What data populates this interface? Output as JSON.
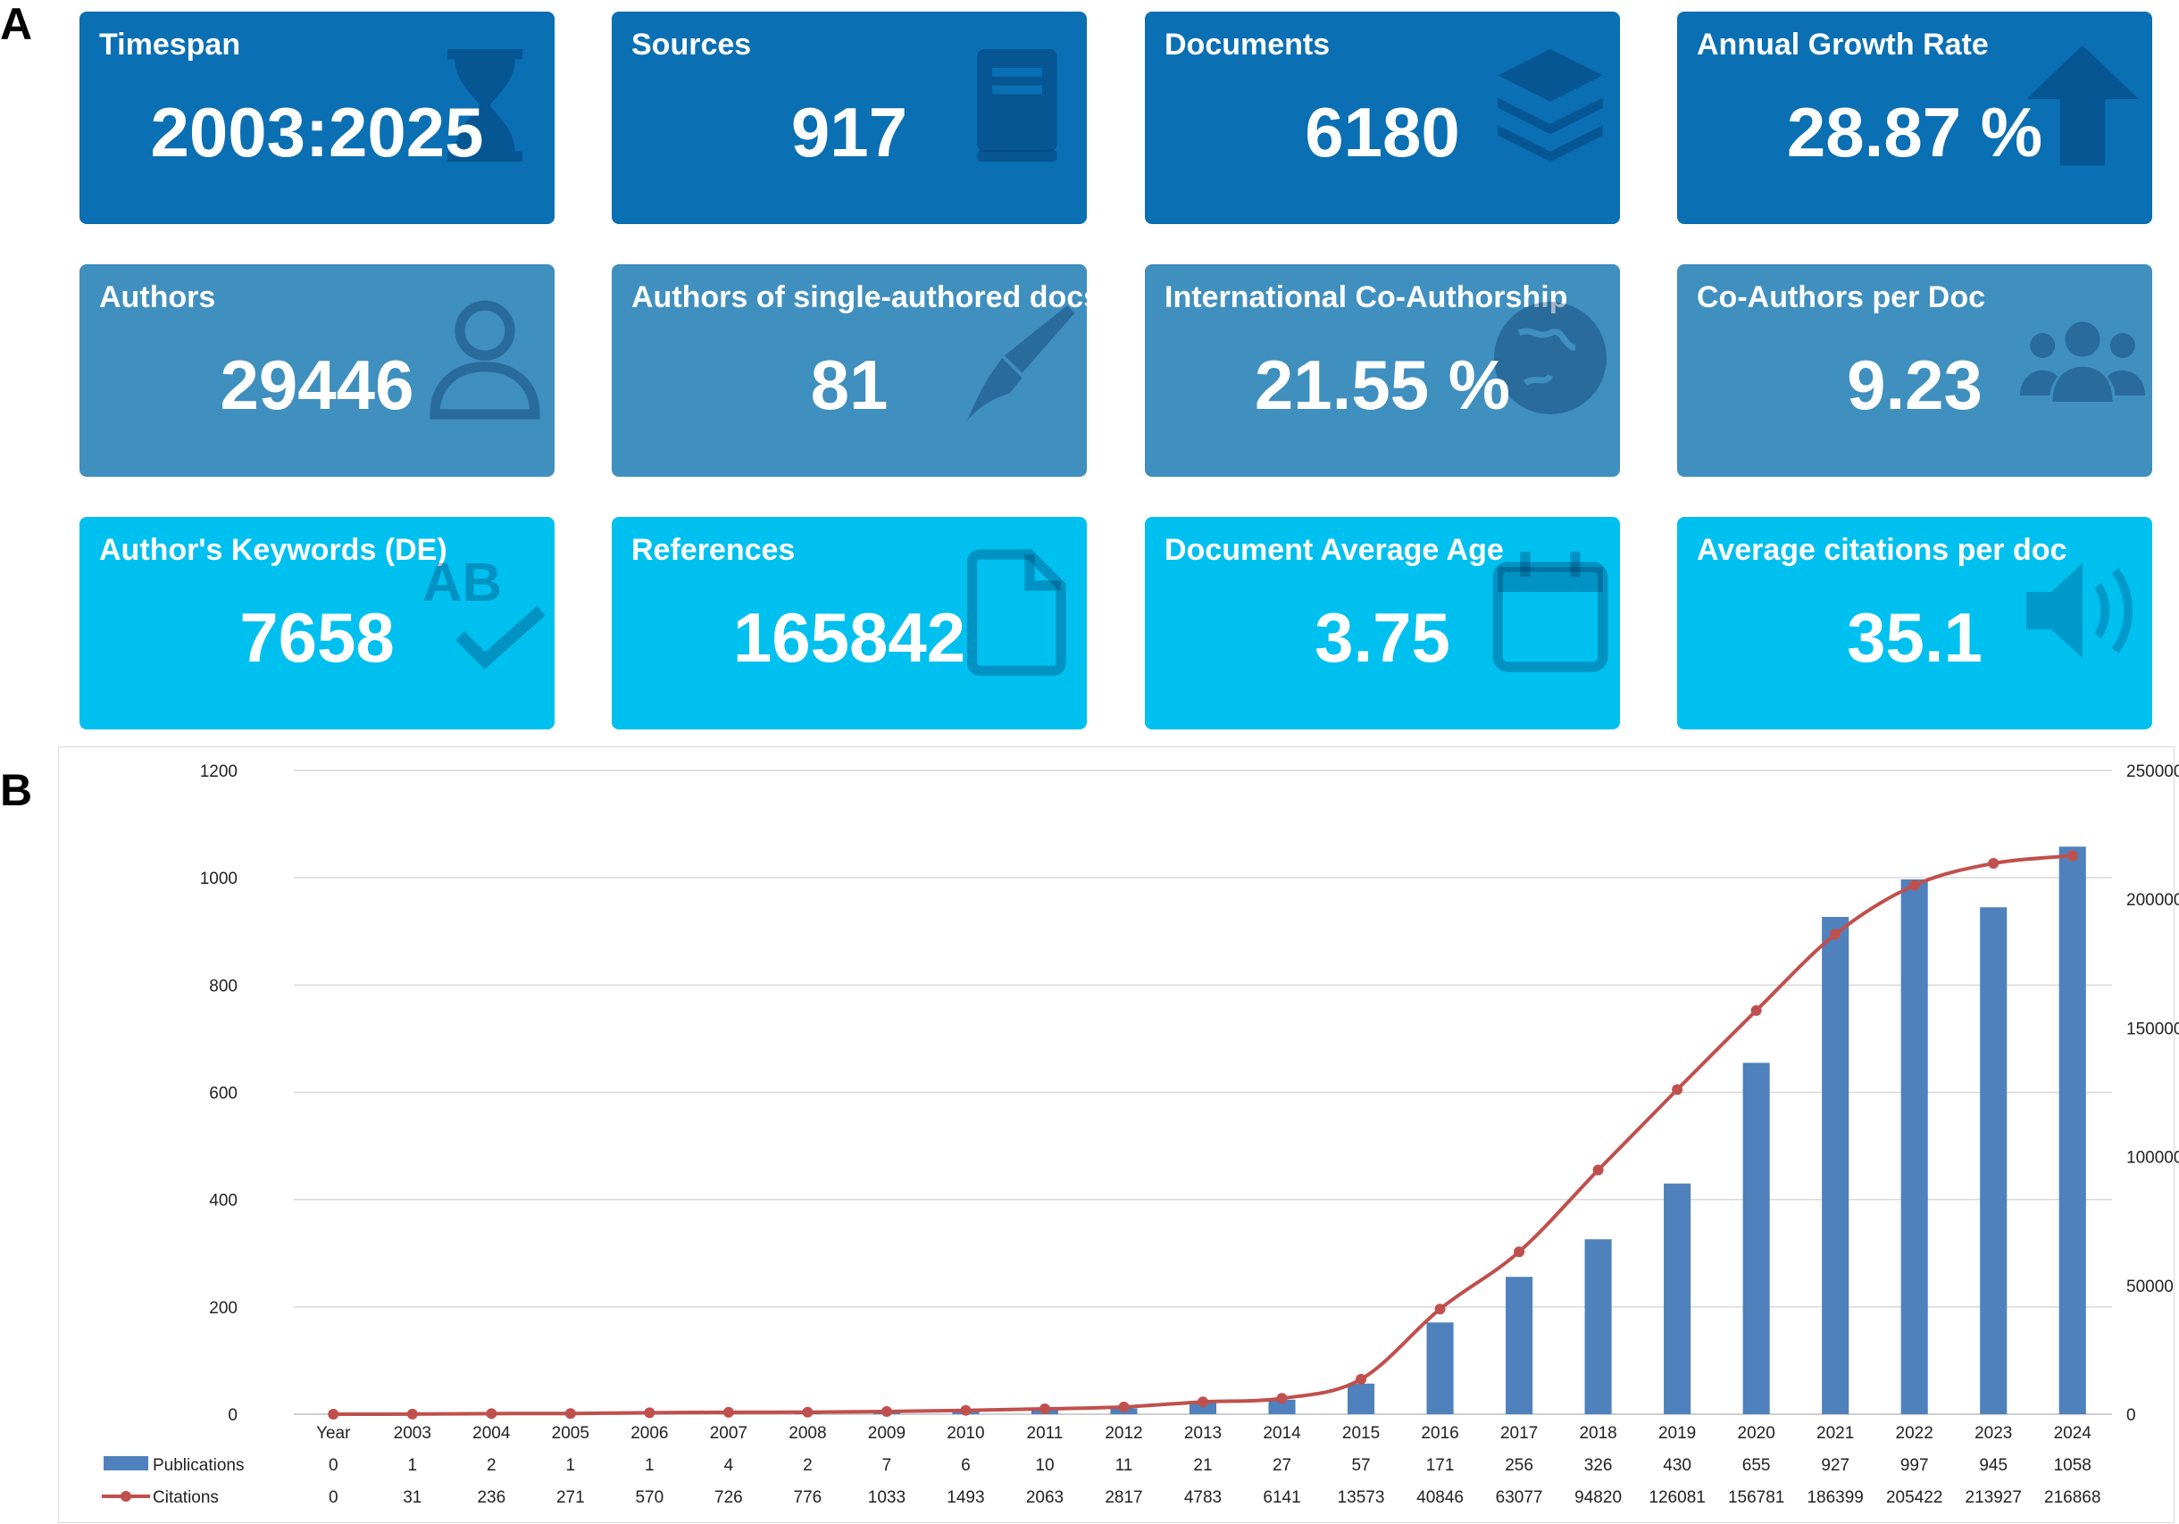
{
  "panels": {
    "a": "A",
    "b": "B"
  },
  "cards": [
    {
      "title": "Timespan",
      "value": "2003:2025",
      "icon": "hourglass-icon"
    },
    {
      "title": "Sources",
      "value": "917",
      "icon": "book-icon"
    },
    {
      "title": "Documents",
      "value": "6180",
      "icon": "layers-icon"
    },
    {
      "title": "Annual Growth Rate",
      "value": "28.87 %",
      "icon": "arrow-up-icon"
    },
    {
      "title": "Authors",
      "value": "29446",
      "icon": "user-icon"
    },
    {
      "title": "Authors of single-authored docs",
      "value": "81",
      "icon": "pen-icon"
    },
    {
      "title": "International Co-Authorship",
      "value": "21.55 %",
      "icon": "globe-icon"
    },
    {
      "title": "Co-Authors per Doc",
      "value": "9.23",
      "icon": "users-icon"
    },
    {
      "title": "Author's Keywords (DE)",
      "value": "7658",
      "icon": "spellcheck-icon"
    },
    {
      "title": "References",
      "value": "165842",
      "icon": "file-icon"
    },
    {
      "title": "Document Average Age",
      "value": "3.75",
      "icon": "calendar-icon"
    },
    {
      "title": "Average citations per doc",
      "value": "35.1",
      "icon": "volume-icon"
    }
  ],
  "colors": {
    "row1": "#0a6fb3",
    "row2": "#3f8fbf",
    "row3": "#00c0ef",
    "bar": "#4f81bd",
    "line": "#c0504d"
  },
  "chart_data": {
    "type": "bar",
    "title": "",
    "categories": [
      "Year",
      "2003",
      "2004",
      "2005",
      "2006",
      "2007",
      "2008",
      "2009",
      "2010",
      "2011",
      "2012",
      "2013",
      "2014",
      "2015",
      "2016",
      "2017",
      "2018",
      "2019",
      "2020",
      "2021",
      "2022",
      "2023",
      "2024"
    ],
    "series": [
      {
        "name": "Publications",
        "type": "bar",
        "axis": "left",
        "values": [
          0,
          1,
          2,
          1,
          1,
          4,
          2,
          7,
          6,
          10,
          11,
          21,
          27,
          57,
          171,
          256,
          326,
          430,
          655,
          927,
          997,
          945,
          1058
        ]
      },
      {
        "name": "Citations",
        "type": "line",
        "axis": "right",
        "values": [
          0,
          31,
          236,
          271,
          570,
          726,
          776,
          1033,
          1493,
          2063,
          2817,
          4783,
          6141,
          13573,
          40846,
          63077,
          94820,
          126081,
          156781,
          186399,
          205422,
          213927,
          216868
        ]
      }
    ],
    "ylim": [
      0,
      1200
    ],
    "yticks": [
      0,
      200,
      400,
      600,
      800,
      1000,
      1200
    ],
    "y2lim": [
      0,
      250000
    ],
    "y2ticks": [
      0,
      50000,
      100000,
      150000,
      200000,
      250000
    ],
    "legend": "data-table-bottom",
    "grid": true
  }
}
